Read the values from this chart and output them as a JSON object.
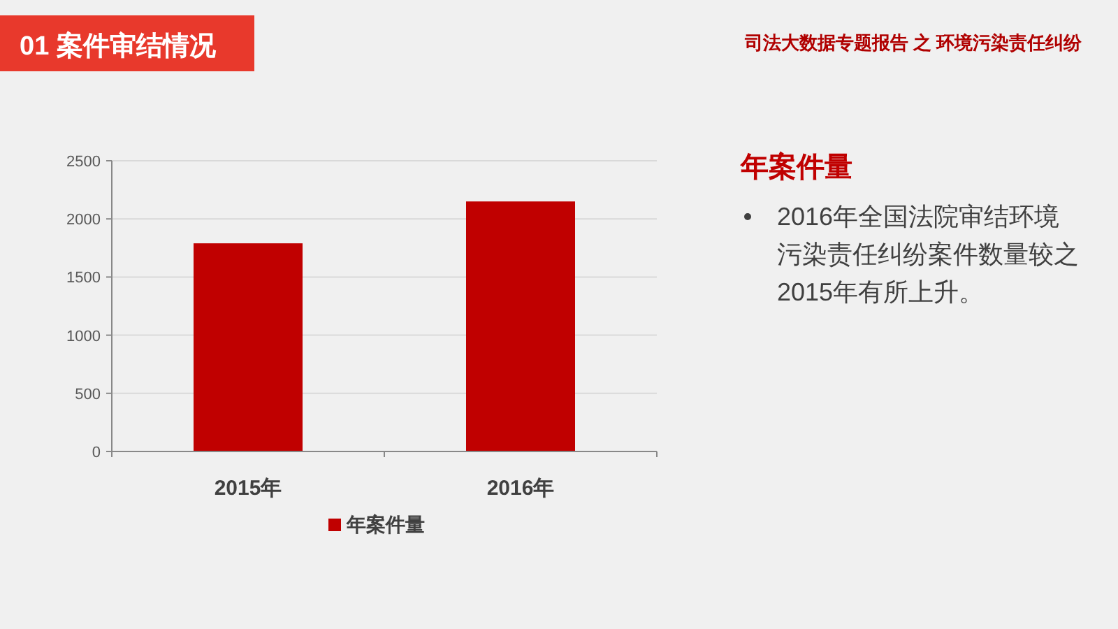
{
  "chart_data": {
    "type": "bar",
    "title": "01  案件审结情况",
    "subtitle": "司法大数据专题报告 之 环境污染责任纠纷",
    "categories": [
      "2015年",
      "2016年"
    ],
    "series": [
      {
        "name": "年案件量",
        "color": "#c00000",
        "values": [
          1790,
          2150
        ]
      }
    ],
    "ylim": [
      0,
      2500
    ],
    "yticks": [
      0,
      500,
      1000,
      1500,
      2000,
      2500
    ],
    "grid": "y",
    "legend": "bottom",
    "annotations": [
      "年案件量",
      "2016年全国法院审结环境污染责任纠纷案件数量较之2015年有所上升。"
    ]
  }
}
